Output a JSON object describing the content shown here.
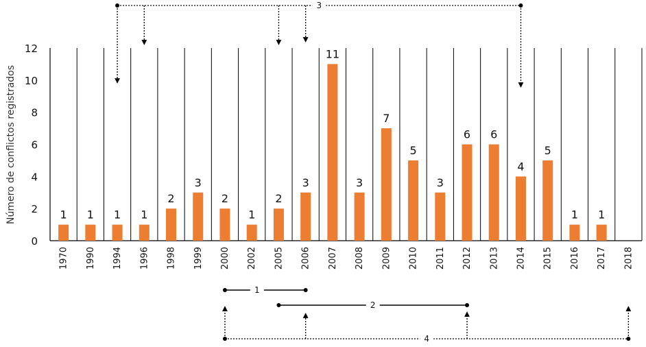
{
  "chart_data": {
    "type": "bar",
    "title": "",
    "xlabel": "",
    "ylabel": "Número de conflictos registrados",
    "ylim": [
      0,
      12
    ],
    "yticks": [
      0,
      2,
      4,
      6,
      8,
      10,
      12
    ],
    "grid": "vertical separators between categories",
    "categories": [
      "1970",
      "1990",
      "1994",
      "1996",
      "1998",
      "1999",
      "2000",
      "2002",
      "2005",
      "2006",
      "2007",
      "2008",
      "2009",
      "2010",
      "2011",
      "2012",
      "2013",
      "2014",
      "2015",
      "2016",
      "2017",
      "2018"
    ],
    "values": [
      1,
      1,
      1,
      1,
      2,
      3,
      2,
      1,
      2,
      3,
      11,
      3,
      7,
      5,
      3,
      6,
      6,
      4,
      5,
      1,
      1,
      0
    ],
    "data_labels": [
      "1",
      "1",
      "1",
      "1",
      "2",
      "3",
      "2",
      "1",
      "2",
      "3",
      "11",
      "3",
      "7",
      "5",
      "3",
      "6",
      "6",
      "4",
      "5",
      "1",
      "1",
      ""
    ],
    "bar_color": "#ED7D31",
    "annotations": [
      {
        "label": "3",
        "style": "dotted",
        "position": "above",
        "points_to": [
          "1994",
          "1996",
          "2005",
          "2006",
          "2014"
        ]
      },
      {
        "label": "1",
        "style": "solid",
        "position": "below",
        "spans": [
          "2000",
          "2006"
        ]
      },
      {
        "label": "2",
        "style": "solid",
        "position": "below",
        "spans": [
          "2005",
          "2012"
        ]
      },
      {
        "label": "4",
        "style": "dotted",
        "position": "below",
        "points_to": [
          "2000",
          "2006",
          "2012",
          "2018"
        ]
      }
    ]
  }
}
